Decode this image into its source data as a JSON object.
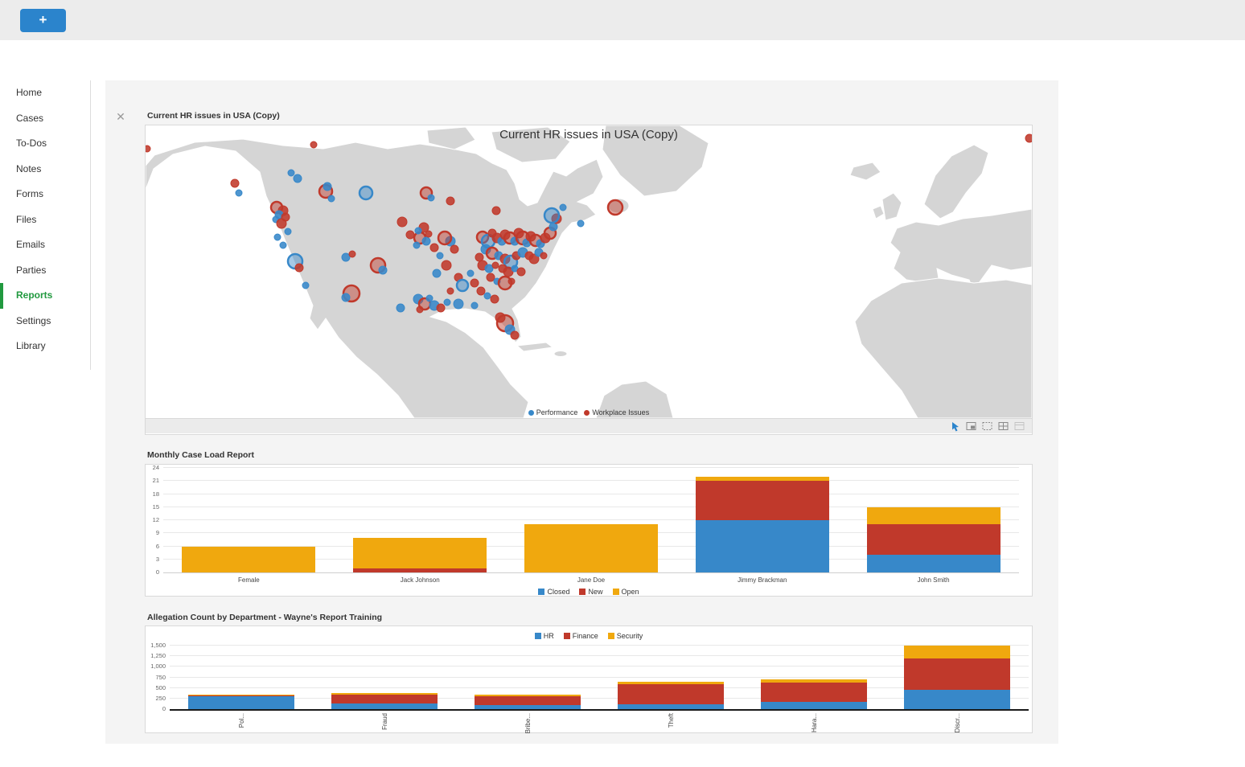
{
  "topbar": {
    "add_button_label": "+",
    "accent_color": "#2b84cc"
  },
  "sidebar": {
    "active": "Reports",
    "active_color": "#21993f",
    "items": [
      {
        "label": "Home"
      },
      {
        "label": "Cases"
      },
      {
        "label": "To-Dos"
      },
      {
        "label": "Notes"
      },
      {
        "label": "Forms"
      },
      {
        "label": "Files"
      },
      {
        "label": "Emails"
      },
      {
        "label": "Parties"
      },
      {
        "label": "Reports"
      },
      {
        "label": "Settings"
      },
      {
        "label": "Library"
      }
    ]
  },
  "viewer": {
    "close_icon": "✕"
  },
  "panels": [
    {
      "title": "Current HR issues in USA (Copy)"
    },
    {
      "title": "Monthly Case Load Report"
    },
    {
      "title": "Allegation Count by Department - Wayne's Report Training"
    }
  ],
  "map_toolbar": {
    "tools": [
      "pointer-tool",
      "rectangle-select",
      "zoom-area",
      "grid-view",
      "collapse-view"
    ]
  },
  "chart_data": [
    {
      "id": "hr-map",
      "type": "scatter",
      "title": "Current HR issues in USA (Copy)",
      "legend_position": "bottom",
      "series_colors": [
        "#3788c9",
        "#c0392b"
      ],
      "legend": [
        {
          "name": "Performance",
          "color": "#3788c9"
        },
        {
          "name": "Workplace Issues",
          "color": "#c0392b"
        }
      ],
      "points_format": "[x, y, radius, series_index] in 1102x364 map coords; series 0=Performance(blue), 1=Workplace Issues(red)",
      "points": [
        [
          2,
          29,
          4,
          1
        ],
        [
          111,
          72,
          5,
          1
        ],
        [
          116,
          84,
          4,
          0
        ],
        [
          209,
          24,
          4,
          1
        ],
        [
          1099,
          16,
          5,
          1
        ],
        [
          584,
          102,
          9,
          1
        ],
        [
          541,
          122,
          4,
          0
        ],
        [
          519,
          102,
          4,
          0
        ],
        [
          163,
          102,
          7,
          1
        ],
        [
          171,
          106,
          6,
          1
        ],
        [
          166,
          111,
          5,
          0
        ],
        [
          174,
          114,
          5,
          1
        ],
        [
          162,
          117,
          4,
          0
        ],
        [
          169,
          122,
          6,
          1
        ],
        [
          177,
          132,
          4,
          0
        ],
        [
          164,
          139,
          4,
          0
        ],
        [
          171,
          149,
          4,
          0
        ],
        [
          224,
          82,
          8,
          1
        ],
        [
          226,
          76,
          5,
          0
        ],
        [
          231,
          91,
          4,
          0
        ],
        [
          189,
          66,
          5,
          0
        ],
        [
          181,
          59,
          4,
          0
        ],
        [
          274,
          84,
          8,
          0
        ],
        [
          186,
          169,
          9,
          0
        ],
        [
          191,
          177,
          5,
          1
        ],
        [
          199,
          199,
          4,
          0
        ],
        [
          256,
          209,
          10,
          1
        ],
        [
          249,
          214,
          5,
          0
        ],
        [
          289,
          174,
          9,
          1
        ],
        [
          295,
          180,
          5,
          0
        ],
        [
          317,
          227,
          5,
          0
        ],
        [
          249,
          164,
          5,
          0
        ],
        [
          257,
          160,
          4,
          1
        ],
        [
          339,
          216,
          6,
          0
        ],
        [
          347,
          222,
          7,
          1
        ],
        [
          359,
          224,
          6,
          0
        ],
        [
          367,
          227,
          5,
          1
        ],
        [
          353,
          215,
          4,
          0
        ],
        [
          375,
          220,
          4,
          0
        ],
        [
          341,
          229,
          4,
          1
        ],
        [
          319,
          120,
          6,
          1
        ],
        [
          329,
          136,
          5,
          1
        ],
        [
          341,
          140,
          7,
          1
        ],
        [
          349,
          144,
          5,
          0
        ],
        [
          337,
          149,
          4,
          0
        ],
        [
          359,
          152,
          5,
          1
        ],
        [
          352,
          135,
          4,
          1
        ],
        [
          346,
          127,
          6,
          1
        ],
        [
          339,
          131,
          4,
          0
        ],
        [
          379,
          144,
          6,
          0
        ],
        [
          372,
          140,
          8,
          1
        ],
        [
          384,
          154,
          5,
          1
        ],
        [
          366,
          162,
          4,
          0
        ],
        [
          374,
          174,
          6,
          1
        ],
        [
          362,
          184,
          5,
          0
        ],
        [
          389,
          189,
          5,
          1
        ],
        [
          394,
          199,
          7,
          0
        ],
        [
          379,
          206,
          4,
          1
        ],
        [
          404,
          184,
          4,
          0
        ],
        [
          409,
          196,
          5,
          1
        ],
        [
          349,
          84,
          7,
          1
        ],
        [
          355,
          90,
          4,
          0
        ],
        [
          379,
          94,
          5,
          1
        ],
        [
          436,
          106,
          5,
          1
        ],
        [
          419,
          139,
          7,
          1
        ],
        [
          426,
          144,
          8,
          0
        ],
        [
          431,
          134,
          5,
          1
        ],
        [
          437,
          140,
          6,
          1
        ],
        [
          443,
          144,
          5,
          0
        ],
        [
          447,
          136,
          6,
          1
        ],
        [
          453,
          140,
          7,
          1
        ],
        [
          459,
          144,
          5,
          0
        ],
        [
          464,
          134,
          6,
          1
        ],
        [
          469,
          140,
          8,
          1
        ],
        [
          474,
          146,
          5,
          0
        ],
        [
          479,
          138,
          6,
          1
        ],
        [
          485,
          143,
          7,
          1
        ],
        [
          491,
          147,
          5,
          0
        ],
        [
          497,
          140,
          6,
          1
        ],
        [
          503,
          134,
          7,
          1
        ],
        [
          507,
          126,
          5,
          0
        ],
        [
          511,
          116,
          6,
          1
        ],
        [
          505,
          112,
          9,
          0
        ],
        [
          423,
          154,
          6,
          0
        ],
        [
          431,
          159,
          7,
          1
        ],
        [
          439,
          162,
          5,
          0
        ],
        [
          447,
          166,
          6,
          1
        ],
        [
          454,
          170,
          8,
          0
        ],
        [
          461,
          162,
          5,
          1
        ],
        [
          469,
          158,
          6,
          0
        ],
        [
          477,
          162,
          5,
          1
        ],
        [
          483,
          166,
          6,
          1
        ],
        [
          489,
          158,
          5,
          0
        ],
        [
          495,
          162,
          4,
          1
        ],
        [
          415,
          164,
          5,
          1
        ],
        [
          419,
          174,
          6,
          1
        ],
        [
          427,
          178,
          5,
          0
        ],
        [
          435,
          174,
          4,
          1
        ],
        [
          444,
          178,
          5,
          1
        ],
        [
          451,
          182,
          6,
          1
        ],
        [
          459,
          178,
          4,
          0
        ],
        [
          467,
          182,
          5,
          1
        ],
        [
          429,
          189,
          5,
          1
        ],
        [
          437,
          194,
          4,
          0
        ],
        [
          447,
          196,
          8,
          1
        ],
        [
          455,
          194,
          4,
          1
        ],
        [
          417,
          206,
          5,
          1
        ],
        [
          425,
          212,
          4,
          0
        ],
        [
          434,
          216,
          5,
          1
        ],
        [
          389,
          222,
          6,
          0
        ],
        [
          409,
          224,
          4,
          0
        ],
        [
          441,
          239,
          6,
          1
        ],
        [
          447,
          246,
          10,
          1
        ],
        [
          453,
          254,
          6,
          0
        ],
        [
          459,
          261,
          5,
          1
        ]
      ]
    },
    {
      "id": "monthly-case-load",
      "type": "bar",
      "stacked": true,
      "title": "Monthly Case Load Report",
      "categories": [
        "Female",
        "Jack Johnson",
        "Jane Doe",
        "Jimmy Brackman",
        "John Smith"
      ],
      "series": [
        {
          "name": "Closed",
          "color": "#3788c9",
          "values": [
            0,
            0,
            0,
            12,
            4
          ]
        },
        {
          "name": "New",
          "color": "#c0392b",
          "values": [
            0,
            1,
            0,
            9,
            7
          ]
        },
        {
          "name": "Open",
          "color": "#f0a80e",
          "values": [
            6,
            7,
            11,
            1,
            4
          ]
        }
      ],
      "ylim": [
        0,
        24
      ],
      "yticks": [
        0,
        3,
        6,
        9,
        12,
        15,
        18,
        21,
        24
      ],
      "legend_position": "bottom",
      "grid": true,
      "bar_width": "78%",
      "xlabels_rotated": false
    },
    {
      "id": "allegation-count",
      "type": "bar",
      "stacked": true,
      "title": "Allegation Count by Department - Wayne's Report Training",
      "categories": [
        "Pol...",
        "Fraud",
        "Bribe...",
        "Theft",
        "Hara...",
        "Discr..."
      ],
      "series": [
        {
          "name": "HR",
          "color": "#3788c9",
          "values": [
            300,
            140,
            100,
            110,
            180,
            450
          ]
        },
        {
          "name": "Finance",
          "color": "#c0392b",
          "values": [
            20,
            200,
            210,
            470,
            440,
            750
          ]
        },
        {
          "name": "Security",
          "color": "#f0a80e",
          "values": [
            15,
            40,
            40,
            70,
            80,
            300
          ]
        }
      ],
      "ylim": [
        0,
        1500
      ],
      "yticks": [
        0,
        250,
        500,
        750,
        1000,
        1250,
        1500
      ],
      "ytick_labels": [
        "0",
        "250",
        "500",
        "750",
        "1,000",
        "1,250",
        "1,500"
      ],
      "legend_position": "top",
      "grid": true,
      "bar_width": "74%",
      "xlabels_rotated": true
    }
  ]
}
